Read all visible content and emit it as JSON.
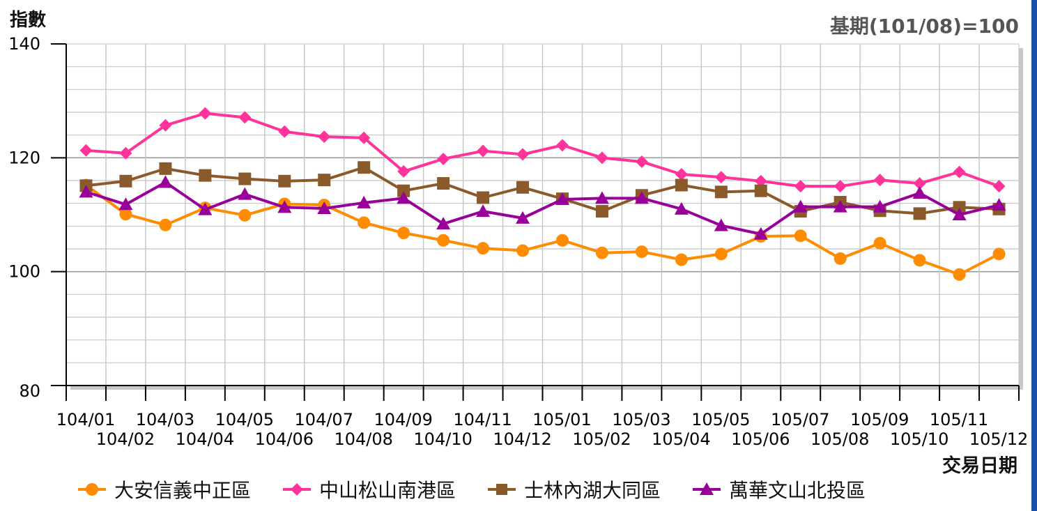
{
  "header": {
    "y_title": "指數",
    "base_note": "基期(101/08)=100",
    "x_title": "交易日期"
  },
  "chart_data": {
    "type": "line",
    "x": [
      "104/01",
      "104/02",
      "104/03",
      "104/04",
      "104/05",
      "104/06",
      "104/07",
      "104/08",
      "104/09",
      "104/10",
      "104/11",
      "104/12",
      "105/01",
      "105/02",
      "105/03",
      "105/04",
      "105/05",
      "105/06",
      "105/07",
      "105/08",
      "105/09",
      "105/10",
      "105/11",
      "105/12"
    ],
    "ylim": [
      80,
      140
    ],
    "yticks": [
      80,
      100,
      120,
      140
    ],
    "grid": true,
    "legend_position": "bottom",
    "series": [
      {
        "name": "大安信義中正區",
        "color": "#ff8c00",
        "marker": "circle",
        "values": [
          115.2,
          110.1,
          108.2,
          111.2,
          109.9,
          111.9,
          111.7,
          108.6,
          106.8,
          105.5,
          104.1,
          103.7,
          105.5,
          103.3,
          103.5,
          102.1,
          103.1,
          106.2,
          106.3,
          102.3,
          105.0,
          102.0,
          99.5,
          103.1
        ]
      },
      {
        "name": "中山松山南港區",
        "color": "#ff3399",
        "marker": "diamond",
        "values": [
          121.3,
          120.8,
          125.7,
          127.8,
          127.1,
          124.6,
          123.7,
          123.5,
          117.6,
          119.8,
          121.2,
          120.6,
          122.2,
          120.0,
          119.3,
          117.1,
          116.6,
          115.9,
          115.0,
          115.0,
          116.1,
          115.5,
          117.5,
          115.0
        ]
      },
      {
        "name": "士林內湖大同區",
        "color": "#8b5a2b",
        "marker": "square",
        "values": [
          115.1,
          115.9,
          118.1,
          116.9,
          116.3,
          115.9,
          116.1,
          118.3,
          114.2,
          115.5,
          113.0,
          114.8,
          112.8,
          110.6,
          113.4,
          115.2,
          114.0,
          114.2,
          110.6,
          112.2,
          110.7,
          110.2,
          111.3,
          111.0
        ]
      },
      {
        "name": "萬華文山北投區",
        "color": "#990099",
        "marker": "triangle",
        "values": [
          114.0,
          111.8,
          115.7,
          110.9,
          113.6,
          111.3,
          111.1,
          112.1,
          112.9,
          108.4,
          110.6,
          109.4,
          112.7,
          112.9,
          112.9,
          111.0,
          108.1,
          106.6,
          111.4,
          111.4,
          111.4,
          113.8,
          110.0,
          111.7
        ]
      }
    ]
  }
}
